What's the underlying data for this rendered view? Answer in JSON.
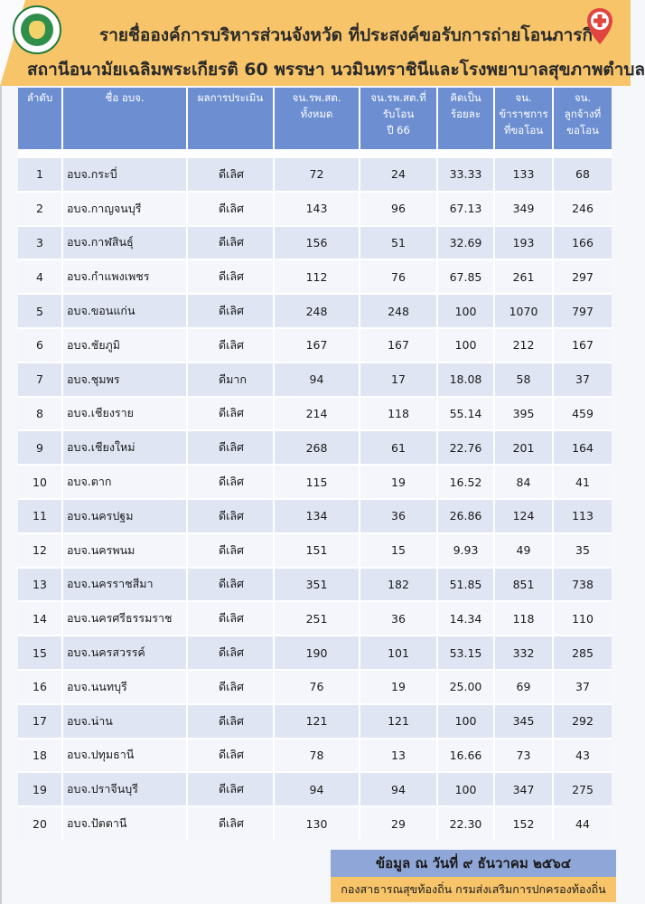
{
  "header": {
    "title_line1": "รายชื่อองค์การบริหารส่วนจังหวัด ที่ประสงค์ขอรับการถ่ายโอนภารกิจ",
    "title_line2": "สถานีอนามัยเฉลิมพระเกียรติ 60 พรรษา นวมินทราชินีและโรงพยาบาลสุขภาพตำบล",
    "logo_icon": "government-seal-icon",
    "pin_icon": "red-cross-location-pin-icon"
  },
  "colors": {
    "header_bg": "#f7c46a",
    "table_header_bg": "#6d8fd2",
    "row_odd_bg": "#dfe5f3",
    "row_even_bg": "#f4f6fb",
    "date_box_bg": "#8fa7d8"
  },
  "table": {
    "columns": [
      "ลำดับ",
      "ชื่อ อบจ.",
      "ผลการประเมิน",
      "จน.รพ.สต.\nทั้งหมด",
      "จน.รพ.สต.ที่\nรับโอน\nปี 66",
      "คิดเป็น\nร้อยละ",
      "จน.\nข้าราชการ\nที่ขอโอน",
      "จน.\nลูกจ้างที่\nขอโอน"
    ],
    "rows": [
      [
        "1",
        "อบจ.กระบี่",
        "ดีเลิศ",
        "72",
        "24",
        "33.33",
        "133",
        "68"
      ],
      [
        "2",
        "อบจ.กาญจนบุรี",
        "ดีเลิศ",
        "143",
        "96",
        "67.13",
        "349",
        "246"
      ],
      [
        "3",
        "อบจ.กาฬสินธุ์",
        "ดีเลิศ",
        "156",
        "51",
        "32.69",
        "193",
        "166"
      ],
      [
        "4",
        "อบจ.กำแพงเพชร",
        "ดีเลิศ",
        "112",
        "76",
        "67.85",
        "261",
        "297"
      ],
      [
        "5",
        "อบจ.ขอนแก่น",
        "ดีเลิศ",
        "248",
        "248",
        "100",
        "1070",
        "797"
      ],
      [
        "6",
        "อบจ.ชัยภูมิ",
        "ดีเลิศ",
        "167",
        "167",
        "100",
        "212",
        "167"
      ],
      [
        "7",
        "อบจ.ชุมพร",
        "ดีมาก",
        "94",
        "17",
        "18.08",
        "58",
        "37"
      ],
      [
        "8",
        "อบจ.เชียงราย",
        "ดีเลิศ",
        "214",
        "118",
        "55.14",
        "395",
        "459"
      ],
      [
        "9",
        "อบจ.เชียงใหม่",
        "ดีเลิศ",
        "268",
        "61",
        "22.76",
        "201",
        "164"
      ],
      [
        "10",
        "อบจ.ตาก",
        "ดีเลิศ",
        "115",
        "19",
        "16.52",
        "84",
        "41"
      ],
      [
        "11",
        "อบจ.นครปฐม",
        "ดีเลิศ",
        "134",
        "36",
        "26.86",
        "124",
        "113"
      ],
      [
        "12",
        "อบจ.นครพนม",
        "ดีเลิศ",
        "151",
        "15",
        "9.93",
        "49",
        "35"
      ],
      [
        "13",
        "อบจ.นครราชสีมา",
        "ดีเลิศ",
        "351",
        "182",
        "51.85",
        "851",
        "738"
      ],
      [
        "14",
        "อบจ.นครศรีธรรมราช",
        "ดีเลิศ",
        "251",
        "36",
        "14.34",
        "118",
        "110"
      ],
      [
        "15",
        "อบจ.นครสวรรค์",
        "ดีเลิศ",
        "190",
        "101",
        "53.15",
        "332",
        "285"
      ],
      [
        "16",
        "อบจ.นนทบุรี",
        "ดีเลิศ",
        "76",
        "19",
        "25.00",
        "69",
        "37"
      ],
      [
        "17",
        "อบจ.น่าน",
        "ดีเลิศ",
        "121",
        "121",
        "100",
        "345",
        "292"
      ],
      [
        "18",
        "อบจ.ปทุมธานี",
        "ดีเลิศ",
        "78",
        "13",
        "16.66",
        "73",
        "43"
      ],
      [
        "19",
        "อบจ.ปราจีนบุรี",
        "ดีเลิศ",
        "94",
        "94",
        "100",
        "347",
        "275"
      ],
      [
        "20",
        "อบจ.ปัตตานี",
        "ดีเลิศ",
        "130",
        "29",
        "22.30",
        "152",
        "44"
      ]
    ]
  },
  "footer": {
    "date_text": "ข้อมูล ณ วันที่ ๙ ธันวาคม ๒๕๖๔",
    "source_text": "กองสาธารณสุขท้องถิ่น กรมส่งเสริมการปกครองท้องถิ่น"
  }
}
